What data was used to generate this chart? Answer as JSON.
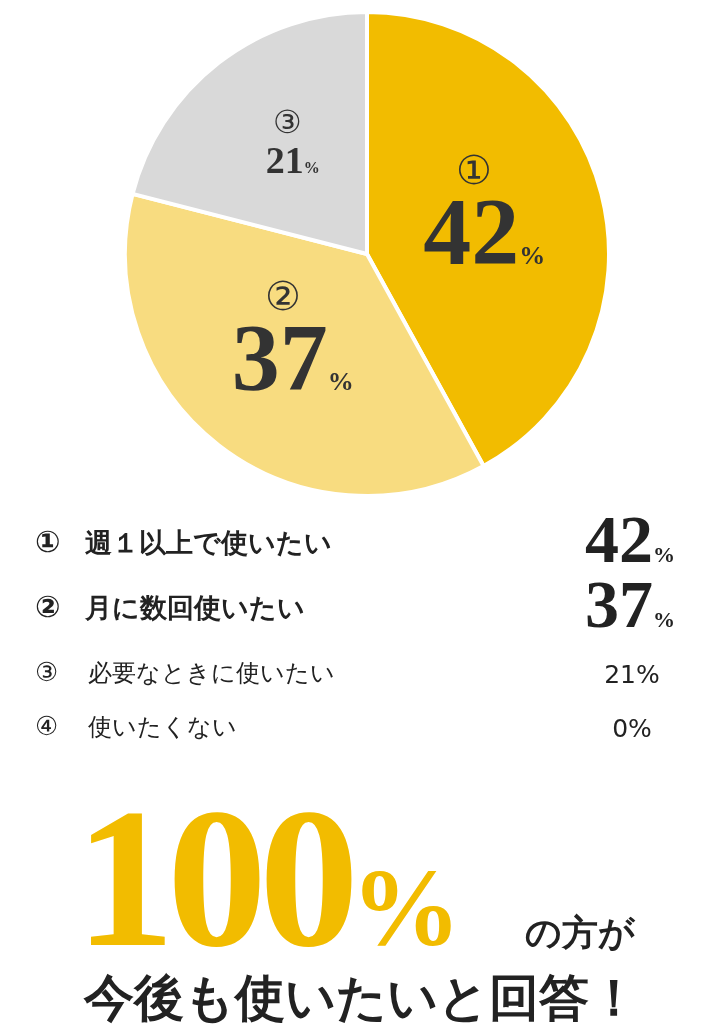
{
  "chart_data": {
    "type": "pie",
    "categories": [
      "①",
      "②",
      "③",
      "④"
    ],
    "values": [
      42,
      37,
      21,
      0
    ],
    "colors": [
      "#f2bc00",
      "#f8dc80",
      "#d9d9d9",
      "#ffffff"
    ],
    "data_labels": true,
    "value_labels": [
      "42%",
      "37%",
      "21%",
      "0%"
    ],
    "annotations": [
      "週１以上で使いたい",
      "月に数回使いたい",
      "必要なときに使いたい",
      "使いたくない",
      "100%",
      "の方が",
      "今後も使いたいと回答！"
    ]
  }
}
